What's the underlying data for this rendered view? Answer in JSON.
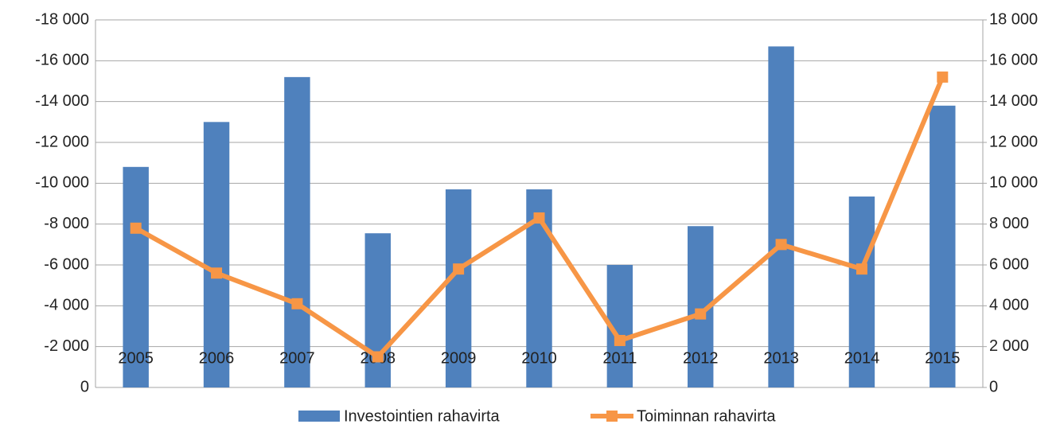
{
  "chart_data": {
    "type": "bar_line",
    "categories": [
      "2005",
      "2006",
      "2007",
      "2008",
      "2009",
      "2010",
      "2011",
      "2012",
      "2013",
      "2014",
      "2015"
    ],
    "series": [
      {
        "name": "Investointien rahavirta",
        "color": "#4f81bd",
        "type": "bar",
        "axis": "y",
        "values": [
          -10800,
          -13000,
          -15200,
          -7550,
          -9700,
          -9700,
          -6000,
          -7900,
          -16700,
          -9350,
          -13800
        ]
      },
      {
        "name": "Toiminnan rahavirta",
        "color": "#f79646",
        "type": "line",
        "axis": "y2",
        "values": [
          7800,
          5600,
          4100,
          1500,
          5800,
          8300,
          2300,
          3600,
          7000,
          5800,
          15200
        ]
      }
    ],
    "ylim": [
      0,
      -18000
    ],
    "yticks": [
      0,
      {
        "value": -2000,
        "label": "-2 000"
      },
      {
        "value": -4000,
        "label": "-4 000"
      },
      {
        "value": -6000,
        "label": "-6 000"
      },
      {
        "value": -8000,
        "label": "-8 000"
      },
      {
        "value": -10000,
        "label": "-10 000"
      },
      {
        "value": -12000,
        "label": "-12 000"
      },
      {
        "value": -14000,
        "label": "-14 000"
      },
      {
        "value": -16000,
        "label": "-16 000"
      },
      {
        "value": -18000,
        "label": "-18 000"
      }
    ],
    "y2lim": [
      0,
      18000
    ],
    "y2ticks": [
      0,
      {
        "value": 2000,
        "label": "2 000"
      },
      {
        "value": 4000,
        "label": "4 000"
      },
      {
        "value": 6000,
        "label": "6 000"
      },
      {
        "value": 8000,
        "label": "8 000"
      },
      {
        "value": 10000,
        "label": "10 000"
      },
      {
        "value": 12000,
        "label": "12 000"
      },
      {
        "value": 14000,
        "label": "14 000"
      },
      {
        "value": 16000,
        "label": "16 000"
      },
      {
        "value": 18000,
        "label": "18 000"
      }
    ],
    "grid": true,
    "legend": "bottom"
  }
}
